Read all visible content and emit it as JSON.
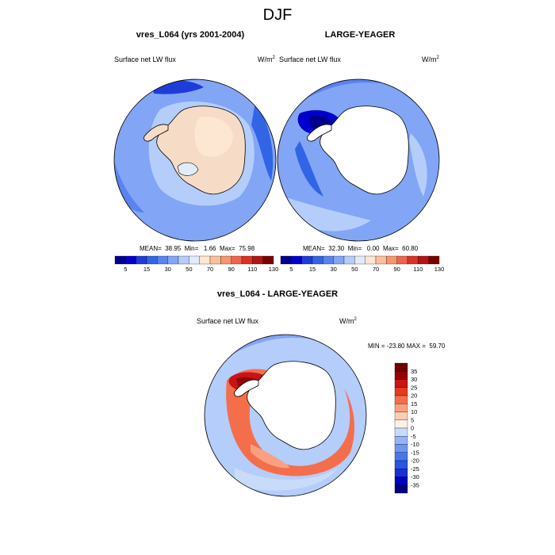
{
  "figure": {
    "title": "DJF",
    "panel1_title": "vres_L064 (yrs 2001-2004)",
    "panel2_title": "LARGE-YEAGER",
    "panel3_title": "vres_L064 - LARGE-YEAGER",
    "field_label": "Surface net LW flux",
    "units_base": "W/m",
    "units_exp": "2"
  },
  "colors": {
    "abs_scale": [
      "#00008b",
      "#0000cd",
      "#1e3cd7",
      "#3264e6",
      "#5a82f0",
      "#82a5f5",
      "#b4cdfa",
      "#e1ebfa",
      "#fde6d2",
      "#fcbe9b",
      "#f7966e",
      "#f0644b",
      "#dc3223",
      "#b41414",
      "#7d0000"
    ],
    "diff_scale": [
      "#000080",
      "#0000c0",
      "#1432d2",
      "#2855e1",
      "#4678eb",
      "#6e96f0",
      "#96b4f5",
      "#c8dcfa",
      "#fdf0e6",
      "#fbcdb4",
      "#f9a082",
      "#f46e4b",
      "#e13c1e",
      "#c81414",
      "#960000",
      "#6e0000"
    ],
    "land_fill_p1": "#f6dcc6",
    "land_fill": "#ffffff",
    "ocean_base_p1": "#82a5f5",
    "ocean_base_p2": "#82a5f5",
    "ocean_base_p3": "#b4cdfa"
  },
  "chart_data": [
    {
      "type": "contour-map",
      "title": "vres_L064 (yrs 2001-2004)",
      "variable": "Surface net LW flux",
      "stats": {
        "mean": "38.95",
        "min": "1.66",
        "max": "75.98"
      },
      "stats_text": "MEAN=  38.95  Min=   1.66  Max=  75.98",
      "colorbar_ticks": [
        "5",
        "15",
        "30",
        "50",
        "70",
        "90",
        "110",
        "130"
      ],
      "colorbar_levels": [
        5,
        10,
        15,
        20,
        30,
        40,
        50,
        60,
        70,
        80,
        90,
        100,
        110,
        120,
        130
      ]
    },
    {
      "type": "contour-map",
      "title": "LARGE-YEAGER",
      "variable": "Surface net LW flux",
      "stats": {
        "mean": "32.30",
        "min": "0.00",
        "max": "60.80"
      },
      "stats_text": "MEAN=  32.30  Min=   0.00  Max=  60.80",
      "colorbar_ticks": [
        "5",
        "15",
        "30",
        "50",
        "70",
        "90",
        "110",
        "130"
      ],
      "colorbar_levels": [
        5,
        10,
        15,
        20,
        30,
        40,
        50,
        60,
        70,
        80,
        90,
        100,
        110,
        120,
        130
      ]
    },
    {
      "type": "contour-map",
      "title": "vres_L064 - LARGE-YEAGER",
      "variable": "Surface net LW flux",
      "stats": {
        "min": "-23.80",
        "max": "59.70"
      },
      "stats_text": "MIN = -23.80 MAX =  59.70",
      "colorbar_ticks": [
        "35",
        "30",
        "25",
        "20",
        "15",
        "10",
        "5",
        "0",
        "-5",
        "-10",
        "-15",
        "-20",
        "-25",
        "-30",
        "-35"
      ],
      "colorbar_levels": [
        -35,
        -30,
        -25,
        -20,
        -15,
        -10,
        -5,
        0,
        5,
        10,
        15,
        20,
        25,
        30,
        35
      ]
    }
  ]
}
